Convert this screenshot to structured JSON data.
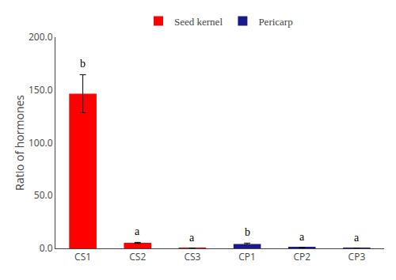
{
  "chart_data": {
    "type": "bar",
    "ylabel": "Ratio of hormones",
    "categories": [
      "CS1",
      "CS2",
      "CS3",
      "CP1",
      "CP2",
      "CP3"
    ],
    "series": [
      {
        "name": "Seed kernel",
        "color": "#ff0000",
        "values": [
          146.5,
          5.2,
          0.15,
          null,
          null,
          null
        ],
        "errors": [
          18.0,
          0.5,
          0.05,
          null,
          null,
          null
        ]
      },
      {
        "name": "Pericarp",
        "color": "#1a1a8c",
        "values": [
          null,
          null,
          null,
          4.2,
          0.8,
          0.1
        ],
        "errors": [
          null,
          null,
          null,
          0.8,
          0.15,
          0.03
        ]
      }
    ],
    "annotations": [
      "b",
      "a",
      "a",
      "b",
      "a",
      "a"
    ],
    "ylim": [
      0,
      200
    ],
    "yticks": [
      {
        "value": 0,
        "label": "0.0"
      },
      {
        "value": 50,
        "label": "50.0"
      },
      {
        "value": 100,
        "label": "100.0"
      },
      {
        "value": 150,
        "label": "150.0"
      },
      {
        "value": 200,
        "label": "200.0"
      }
    ],
    "grid": false,
    "legend": "top"
  }
}
